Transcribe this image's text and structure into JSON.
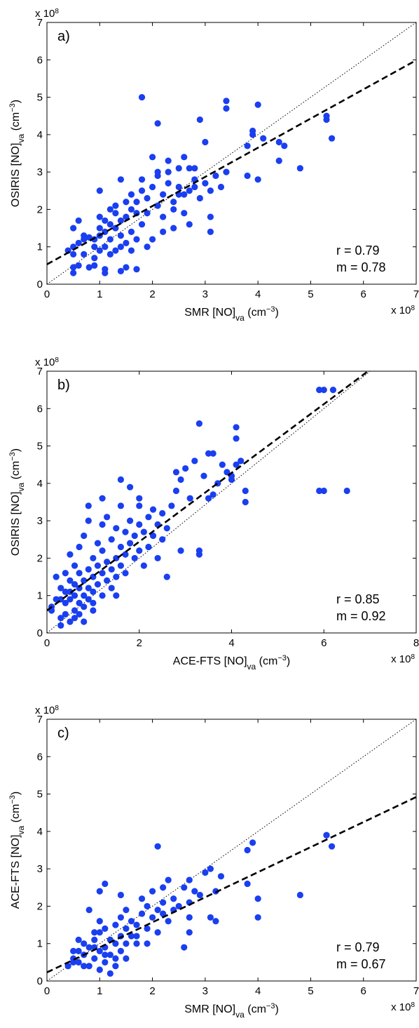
{
  "chart_data": [
    {
      "type": "scatter",
      "panel_label": "a)",
      "xlabel": {
        "base": "SMR [NO]",
        "sub": "va",
        "unit_pre": " (cm",
        "unit_sup": "−3",
        "unit_post": ")"
      },
      "ylabel": {
        "base": "OSIRIS [NO]",
        "sub": "va",
        "unit_pre": " (cm",
        "unit_sup": "−3",
        "unit_post": ")"
      },
      "xlim": [
        0,
        7
      ],
      "ylim": [
        0,
        7
      ],
      "xticks": [
        "0",
        "1",
        "2",
        "3",
        "4",
        "5",
        "6",
        "7"
      ],
      "yticks": [
        "0",
        "1",
        "2",
        "3",
        "4",
        "5",
        "6",
        "7"
      ],
      "x_multiplier": {
        "base": "x 10",
        "exp": "8"
      },
      "y_multiplier": {
        "base": "x 10",
        "exp": "8"
      },
      "r_label": "r = 0.79",
      "m_label": "m = 0.78",
      "fit": {
        "slope": 0.78,
        "intercept": 0.53
      },
      "one_to_one": true,
      "marker_color": "#1a3ff0",
      "points": [
        [
          0.5,
          0.3
        ],
        [
          0.5,
          0.45
        ],
        [
          0.6,
          0.5
        ],
        [
          0.8,
          0.45
        ],
        [
          0.9,
          0.5
        ],
        [
          1.1,
          0.4
        ],
        [
          1.1,
          0.3
        ],
        [
          1.4,
          0.35
        ],
        [
          1.7,
          0.4
        ],
        [
          1.5,
          0.45
        ],
        [
          0.4,
          0.9
        ],
        [
          0.5,
          1.0
        ],
        [
          0.6,
          1.1
        ],
        [
          0.7,
          1.2
        ],
        [
          0.8,
          1.25
        ],
        [
          0.9,
          1.0
        ],
        [
          1.0,
          1.3
        ],
        [
          1.0,
          1.5
        ],
        [
          1.1,
          1.0
        ],
        [
          1.1,
          1.4
        ],
        [
          1.2,
          1.6
        ],
        [
          1.2,
          1.2
        ],
        [
          1.3,
          0.9
        ],
        [
          1.3,
          1.5
        ],
        [
          1.4,
          1.7
        ],
        [
          1.4,
          1.3
        ],
        [
          1.5,
          1.1
        ],
        [
          1.5,
          1.8
        ],
        [
          1.6,
          2.0
        ],
        [
          1.6,
          1.4
        ],
        [
          1.7,
          1.2
        ],
        [
          1.7,
          2.2
        ],
        [
          1.8,
          2.5
        ],
        [
          1.8,
          1.6
        ],
        [
          1.9,
          1.9
        ],
        [
          1.9,
          2.3
        ],
        [
          2.0,
          1.2
        ],
        [
          2.0,
          2.6
        ],
        [
          2.1,
          2.1
        ],
        [
          2.1,
          2.9
        ],
        [
          2.2,
          1.8
        ],
        [
          2.2,
          2.4
        ],
        [
          2.3,
          2.7
        ],
        [
          2.3,
          3.0
        ],
        [
          2.4,
          2.2
        ],
        [
          2.4,
          2.0
        ],
        [
          2.5,
          2.6
        ],
        [
          2.5,
          3.1
        ],
        [
          2.6,
          2.4
        ],
        [
          2.6,
          1.9
        ],
        [
          2.7,
          2.5
        ],
        [
          2.7,
          3.1
        ],
        [
          2.8,
          2.8
        ],
        [
          2.8,
          2.6
        ],
        [
          2.9,
          2.3
        ],
        [
          3.0,
          2.7
        ],
        [
          3.1,
          2.5
        ],
        [
          3.1,
          1.8
        ],
        [
          3.2,
          2.9
        ],
        [
          3.3,
          2.6
        ],
        [
          3.4,
          3.0
        ],
        [
          0.5,
          1.5
        ],
        [
          0.6,
          1.7
        ],
        [
          0.7,
          1.3
        ],
        [
          0.9,
          1.2
        ],
        [
          1.0,
          1.8
        ],
        [
          1.1,
          1.7
        ],
        [
          1.2,
          2.0
        ],
        [
          1.3,
          2.1
        ],
        [
          1.5,
          2.2
        ],
        [
          1.6,
          2.4
        ],
        [
          1.8,
          2.8
        ],
        [
          2.0,
          3.4
        ],
        [
          2.1,
          3.0
        ],
        [
          2.3,
          3.3
        ],
        [
          2.6,
          3.4
        ],
        [
          2.8,
          3.1
        ],
        [
          3.1,
          1.4
        ],
        [
          2.7,
          1.6
        ],
        [
          2.4,
          1.5
        ],
        [
          1.8,
          5.0
        ],
        [
          2.1,
          4.3
        ],
        [
          2.9,
          4.4
        ],
        [
          3.0,
          3.8
        ],
        [
          3.4,
          4.7
        ],
        [
          3.4,
          4.9
        ],
        [
          4.0,
          4.8
        ],
        [
          3.9,
          4.0
        ],
        [
          3.9,
          4.1
        ],
        [
          4.0,
          2.8
        ],
        [
          3.8,
          3.7
        ],
        [
          3.8,
          2.9
        ],
        [
          4.1,
          3.9
        ],
        [
          4.4,
          3.8
        ],
        [
          4.4,
          3.3
        ],
        [
          4.5,
          3.7
        ],
        [
          4.8,
          3.1
        ],
        [
          5.3,
          4.5
        ],
        [
          5.3,
          4.4
        ],
        [
          5.4,
          3.9
        ],
        [
          0.5,
          0.8
        ],
        [
          0.7,
          0.8
        ],
        [
          0.9,
          0.7
        ],
        [
          1.0,
          0.9
        ],
        [
          1.2,
          0.8
        ],
        [
          1.4,
          1.0
        ],
        [
          1.6,
          0.9
        ],
        [
          1.9,
          1.0
        ],
        [
          1.3,
          1.9
        ],
        [
          1.0,
          2.5
        ],
        [
          1.4,
          2.8
        ],
        [
          1.7,
          1.9
        ],
        [
          2.2,
          1.4
        ],
        [
          2.5,
          2.4
        ]
      ]
    },
    {
      "type": "scatter",
      "panel_label": "b)",
      "xlabel": {
        "base": "ACE-FTS [NO]",
        "sub": "va",
        "unit_pre": " (cm",
        "unit_sup": "−3",
        "unit_post": ")"
      },
      "ylabel": {
        "base": "OSIRIS [NO]",
        "sub": "va",
        "unit_pre": " (cm",
        "unit_sup": "−3",
        "unit_post": ")"
      },
      "xlim": [
        0,
        8
      ],
      "ylim": [
        0,
        7
      ],
      "xticks": [
        "0",
        "2",
        "4",
        "6",
        "8"
      ],
      "yticks": [
        "0",
        "1",
        "2",
        "3",
        "4",
        "5",
        "6",
        "7"
      ],
      "x_multiplier": {
        "base": "x 10",
        "exp": "8"
      },
      "y_multiplier": {
        "base": "x 10",
        "exp": "8"
      },
      "r_label": "r = 0.85",
      "m_label": "m = 0.92",
      "fit": {
        "slope": 0.92,
        "intercept": 0.6
      },
      "one_to_one": true,
      "marker_color": "#1a3ff0",
      "points": [
        [
          0.1,
          0.7
        ],
        [
          0.1,
          0.6
        ],
        [
          0.2,
          1.5
        ],
        [
          0.2,
          0.9
        ],
        [
          0.3,
          0.2
        ],
        [
          0.3,
          0.4
        ],
        [
          0.3,
          1.2
        ],
        [
          0.4,
          0.8
        ],
        [
          0.4,
          0.5
        ],
        [
          0.4,
          1.1
        ],
        [
          0.5,
          0.3
        ],
        [
          0.5,
          0.9
        ],
        [
          0.5,
          1.4
        ],
        [
          0.5,
          2.1
        ],
        [
          0.6,
          0.6
        ],
        [
          0.6,
          1.0
        ],
        [
          0.6,
          1.3
        ],
        [
          0.6,
          1.8
        ],
        [
          0.7,
          0.5
        ],
        [
          0.7,
          0.8
        ],
        [
          0.7,
          1.2
        ],
        [
          0.7,
          1.6
        ],
        [
          0.7,
          2.3
        ],
        [
          0.8,
          0.7
        ],
        [
          0.8,
          1.0
        ],
        [
          0.8,
          1.4
        ],
        [
          0.8,
          2.6
        ],
        [
          0.9,
          0.9
        ],
        [
          0.9,
          1.2
        ],
        [
          0.9,
          1.7
        ],
        [
          0.9,
          3.0
        ],
        [
          1.0,
          0.6
        ],
        [
          1.0,
          1.1
        ],
        [
          1.0,
          1.5
        ],
        [
          1.0,
          2.0
        ],
        [
          1.1,
          1.3
        ],
        [
          1.1,
          1.8
        ],
        [
          1.1,
          2.4
        ],
        [
          1.2,
          1.0
        ],
        [
          1.2,
          1.6
        ],
        [
          1.2,
          2.2
        ],
        [
          1.2,
          2.9
        ],
        [
          1.3,
          1.4
        ],
        [
          1.3,
          1.9
        ],
        [
          1.3,
          3.1
        ],
        [
          1.4,
          1.2
        ],
        [
          1.4,
          1.7
        ],
        [
          1.4,
          2.5
        ],
        [
          1.5,
          2.0
        ],
        [
          1.5,
          2.8
        ],
        [
          1.5,
          1.5
        ],
        [
          1.6,
          1.8
        ],
        [
          1.6,
          2.3
        ],
        [
          1.6,
          3.4
        ],
        [
          1.7,
          2.1
        ],
        [
          1.7,
          2.7
        ],
        [
          1.7,
          1.6
        ],
        [
          1.8,
          2.4
        ],
        [
          1.8,
          3.0
        ],
        [
          1.8,
          3.9
        ],
        [
          1.9,
          2.0
        ],
        [
          1.9,
          2.6
        ],
        [
          2.0,
          2.9
        ],
        [
          2.0,
          2.2
        ],
        [
          2.0,
          3.4
        ],
        [
          2.1,
          1.8
        ],
        [
          2.1,
          2.7
        ],
        [
          2.2,
          3.1
        ],
        [
          2.2,
          2.3
        ],
        [
          2.3,
          2.6
        ],
        [
          2.3,
          3.3
        ],
        [
          2.4,
          2.0
        ],
        [
          2.4,
          2.9
        ],
        [
          2.5,
          3.2
        ],
        [
          2.5,
          2.5
        ],
        [
          2.6,
          1.5
        ],
        [
          2.6,
          2.8
        ],
        [
          2.7,
          3.4
        ],
        [
          2.8,
          3.8
        ],
        [
          2.9,
          2.2
        ],
        [
          2.9,
          4.1
        ],
        [
          3.0,
          4.4
        ],
        [
          3.1,
          3.6
        ],
        [
          3.2,
          4.6
        ],
        [
          3.3,
          5.6
        ],
        [
          3.3,
          2.1
        ],
        [
          3.3,
          2.2
        ],
        [
          3.4,
          4.2
        ],
        [
          3.5,
          3.6
        ],
        [
          3.5,
          4.8
        ],
        [
          3.6,
          3.7
        ],
        [
          3.7,
          4.0
        ],
        [
          3.8,
          4.5
        ],
        [
          3.9,
          4.3
        ],
        [
          4.0,
          4.1
        ],
        [
          4.0,
          4.2
        ],
        [
          4.1,
          5.5
        ],
        [
          4.1,
          5.2
        ],
        [
          4.1,
          4.5
        ],
        [
          4.3,
          3.5
        ],
        [
          4.3,
          3.8
        ],
        [
          5.9,
          3.8
        ],
        [
          6.0,
          3.8
        ],
        [
          6.5,
          3.8
        ],
        [
          5.9,
          6.5
        ],
        [
          6.0,
          6.5
        ],
        [
          6.2,
          6.5
        ],
        [
          0.5,
          1.1
        ],
        [
          0.6,
          0.4
        ],
        [
          0.8,
          0.3
        ],
        [
          1.0,
          0.8
        ],
        [
          1.5,
          1.0
        ],
        [
          0.3,
          0.9
        ],
        [
          0.4,
          1.6
        ],
        [
          0.9,
          3.4
        ],
        [
          1.2,
          3.6
        ],
        [
          2.0,
          3.6
        ],
        [
          1.6,
          4.1
        ],
        [
          2.8,
          4.3
        ],
        [
          3.6,
          4.8
        ],
        [
          4.2,
          4.6
        ]
      ]
    },
    {
      "type": "scatter",
      "panel_label": "c)",
      "xlabel": {
        "base": "SMR [NO]",
        "sub": "va",
        "unit_pre": " (cm",
        "unit_sup": "−3",
        "unit_post": ")"
      },
      "ylabel": {
        "base": "ACE-FTS [NO]",
        "sub": "va",
        "unit_pre": " (cm",
        "unit_sup": "−3",
        "unit_post": ")"
      },
      "xlim": [
        0,
        7
      ],
      "ylim": [
        0,
        7
      ],
      "xticks": [
        "0",
        "1",
        "2",
        "3",
        "4",
        "5",
        "6",
        "7"
      ],
      "yticks": [
        "0",
        "1",
        "2",
        "3",
        "4",
        "5",
        "6",
        "7"
      ],
      "x_multiplier": {
        "base": "x 10",
        "exp": "8"
      },
      "y_multiplier": {
        "base": "x 10",
        "exp": "8"
      },
      "r_label": "r = 0.79",
      "m_label": "m = 0.67",
      "fit": {
        "slope": 0.67,
        "intercept": 0.23
      },
      "one_to_one": true,
      "marker_color": "#1a3ff0",
      "points": [
        [
          0.4,
          0.4
        ],
        [
          0.5,
          0.6
        ],
        [
          0.5,
          0.8
        ],
        [
          0.6,
          0.5
        ],
        [
          0.7,
          0.7
        ],
        [
          0.7,
          1.0
        ],
        [
          0.8,
          0.4
        ],
        [
          0.8,
          0.9
        ],
        [
          0.9,
          0.6
        ],
        [
          0.9,
          1.1
        ],
        [
          1.0,
          0.3
        ],
        [
          1.0,
          0.8
        ],
        [
          1.0,
          1.3
        ],
        [
          1.1,
          0.5
        ],
        [
          1.1,
          0.9
        ],
        [
          1.1,
          1.4
        ],
        [
          1.2,
          0.7
        ],
        [
          1.2,
          1.1
        ],
        [
          1.2,
          0.2
        ],
        [
          1.3,
          0.6
        ],
        [
          1.3,
          1.0
        ],
        [
          1.3,
          1.5
        ],
        [
          1.4,
          0.8
        ],
        [
          1.4,
          1.2
        ],
        [
          1.4,
          1.7
        ],
        [
          1.5,
          1.0
        ],
        [
          1.5,
          1.4
        ],
        [
          1.5,
          1.9
        ],
        [
          1.6,
          1.2
        ],
        [
          1.6,
          1.6
        ],
        [
          1.7,
          1.0
        ],
        [
          1.7,
          1.5
        ],
        [
          1.8,
          1.8
        ],
        [
          1.8,
          2.2
        ],
        [
          1.9,
          1.4
        ],
        [
          1.9,
          2.0
        ],
        [
          2.0,
          1.7
        ],
        [
          2.0,
          2.4
        ],
        [
          2.1,
          1.3
        ],
        [
          2.1,
          1.9
        ],
        [
          2.2,
          2.1
        ],
        [
          2.2,
          2.5
        ],
        [
          2.3,
          1.6
        ],
        [
          2.3,
          2.7
        ],
        [
          2.4,
          2.2
        ],
        [
          2.5,
          2.0
        ],
        [
          2.6,
          2.5
        ],
        [
          2.7,
          1.7
        ],
        [
          2.7,
          2.1
        ],
        [
          2.7,
          2.7
        ],
        [
          2.8,
          2.4
        ],
        [
          2.9,
          2.3
        ],
        [
          3.0,
          2.9
        ],
        [
          3.1,
          1.7
        ],
        [
          3.2,
          1.6
        ],
        [
          3.2,
          2.4
        ],
        [
          3.3,
          2.8
        ],
        [
          1.0,
          1.6
        ],
        [
          1.1,
          2.6
        ],
        [
          1.4,
          2.3
        ],
        [
          0.8,
          1.9
        ],
        [
          1.0,
          2.4
        ],
        [
          2.1,
          3.6
        ],
        [
          2.6,
          0.9
        ],
        [
          2.7,
          1.3
        ],
        [
          3.1,
          3.0
        ],
        [
          3.8,
          3.5
        ],
        [
          3.8,
          2.6
        ],
        [
          3.9,
          3.7
        ],
        [
          4.0,
          2.2
        ],
        [
          4.0,
          1.7
        ],
        [
          4.8,
          2.3
        ],
        [
          5.3,
          3.9
        ],
        [
          5.3,
          3.9
        ],
        [
          5.4,
          3.6
        ],
        [
          0.5,
          0.5
        ],
        [
          0.6,
          0.8
        ],
        [
          0.7,
          0.4
        ],
        [
          0.9,
          0.9
        ],
        [
          1.1,
          0.7
        ],
        [
          1.3,
          0.4
        ],
        [
          1.5,
          0.6
        ],
        [
          1.7,
          1.2
        ],
        [
          1.9,
          1.0
        ],
        [
          2.2,
          1.8
        ],
        [
          2.4,
          1.9
        ],
        [
          0.6,
          1.1
        ],
        [
          0.9,
          1.3
        ]
      ]
    }
  ]
}
